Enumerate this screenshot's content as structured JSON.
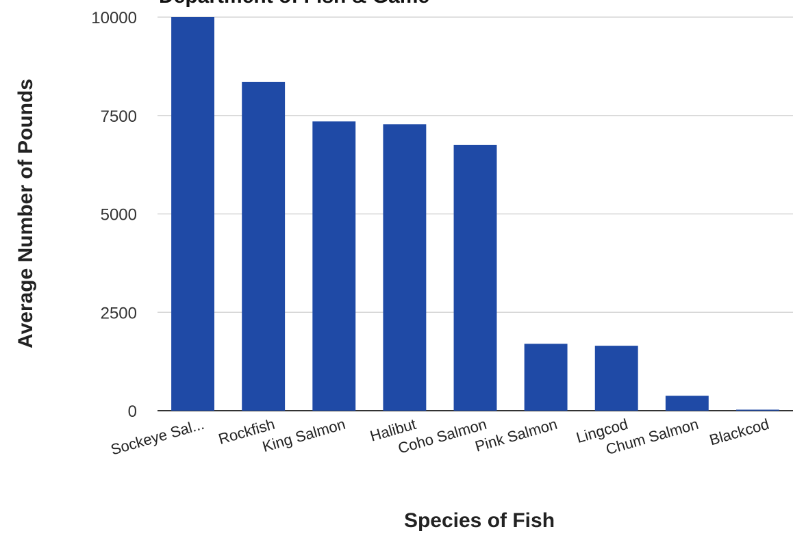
{
  "chart_data": {
    "type": "bar",
    "title": "Department of Fish & Game",
    "xlabel": "Species of Fish",
    "ylabel": "Average Number of Pounds",
    "ylim": [
      0,
      10000
    ],
    "yticks": [
      "0",
      "2500",
      "5000",
      "7500",
      "10000"
    ],
    "grid": true,
    "legend": "none",
    "bar_color": "#1f4aa6",
    "categories": [
      "Sockeye Sal...",
      "Rockfish",
      "King Salmon",
      "Halibut",
      "Coho Salmon",
      "Pink Salmon",
      "Lingcod",
      "Chum Salmon",
      "Blackcod"
    ],
    "values": [
      10000,
      8350,
      7350,
      7280,
      6750,
      1700,
      1650,
      380,
      20
    ]
  }
}
